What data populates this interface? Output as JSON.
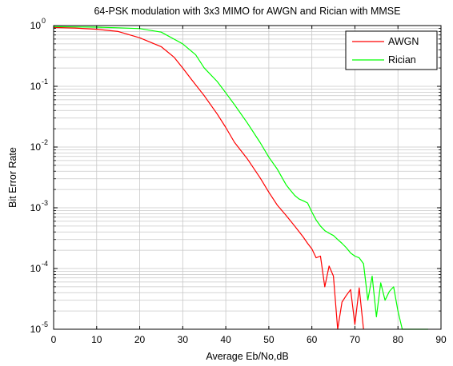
{
  "chart_data": {
    "type": "line",
    "title": "64-PSK modulation with 3x3 MIMO for AWGN and Rician with MMSE",
    "xlabel": "Average Eb/No,dB",
    "ylabel": "Bit Error Rate",
    "xlim": [
      0,
      90
    ],
    "ylim": [
      1e-05,
      1
    ],
    "yscale": "log",
    "grid": true,
    "legend_position": "top-right",
    "x_ticks": [
      {
        "value": 0,
        "label": "0"
      },
      {
        "value": 10,
        "label": "10"
      },
      {
        "value": 20,
        "label": "20"
      },
      {
        "value": 30,
        "label": "30"
      },
      {
        "value": 40,
        "label": "40"
      },
      {
        "value": 50,
        "label": "50"
      },
      {
        "value": 60,
        "label": "60"
      },
      {
        "value": 70,
        "label": "70"
      },
      {
        "value": 80,
        "label": "80"
      },
      {
        "value": 90,
        "label": "90"
      }
    ],
    "y_ticks": [
      {
        "exp": 0,
        "base": "10",
        "sup": "0"
      },
      {
        "exp": -1,
        "base": "10",
        "sup": "-1"
      },
      {
        "exp": -2,
        "base": "10",
        "sup": "-2"
      },
      {
        "exp": -3,
        "base": "10",
        "sup": "-3"
      },
      {
        "exp": -4,
        "base": "10",
        "sup": "-4"
      },
      {
        "exp": -5,
        "base": "10",
        "sup": "-5"
      }
    ],
    "series": [
      {
        "name": "AWGN",
        "color": "#ff0000",
        "points": [
          [
            0,
            0.93
          ],
          [
            5,
            0.91
          ],
          [
            10,
            0.87
          ],
          [
            15,
            0.8
          ],
          [
            20,
            0.63
          ],
          [
            25,
            0.45
          ],
          [
            28,
            0.3
          ],
          [
            30,
            0.2
          ],
          [
            32,
            0.13
          ],
          [
            35,
            0.07
          ],
          [
            38,
            0.035
          ],
          [
            40,
            0.021
          ],
          [
            42,
            0.012
          ],
          [
            45,
            0.0064
          ],
          [
            48,
            0.0031
          ],
          [
            50,
            0.0018
          ],
          [
            52,
            0.0011
          ],
          [
            54,
            0.00075
          ],
          [
            56,
            0.0005
          ],
          [
            58,
            0.00033
          ],
          [
            59,
            0.00026
          ],
          [
            60,
            0.00021
          ],
          [
            61,
            0.00015
          ],
          [
            62,
            0.00016
          ],
          [
            63,
            5e-05
          ],
          [
            64,
            0.00011
          ],
          [
            65,
            7.5e-05
          ],
          [
            66,
            1e-05
          ],
          [
            67,
            2.8e-05
          ],
          [
            68,
            3.6e-05
          ],
          [
            69,
            4.5e-05
          ],
          [
            70,
            1.2e-05
          ],
          [
            71,
            4.8e-05
          ],
          [
            72,
            1e-05
          ]
        ]
      },
      {
        "name": "Rician",
        "color": "#00ff00",
        "points": [
          [
            0,
            0.96
          ],
          [
            5,
            0.95
          ],
          [
            10,
            0.94
          ],
          [
            15,
            0.92
          ],
          [
            20,
            0.89
          ],
          [
            25,
            0.78
          ],
          [
            30,
            0.5
          ],
          [
            33,
            0.33
          ],
          [
            35,
            0.2
          ],
          [
            38,
            0.12
          ],
          [
            40,
            0.078
          ],
          [
            42,
            0.05
          ],
          [
            45,
            0.025
          ],
          [
            48,
            0.0118
          ],
          [
            50,
            0.0068
          ],
          [
            52,
            0.0043
          ],
          [
            54,
            0.0024
          ],
          [
            55,
            0.00195
          ],
          [
            56,
            0.0016
          ],
          [
            57,
            0.0014
          ],
          [
            58,
            0.0013
          ],
          [
            59,
            0.0012
          ],
          [
            60,
            0.00085
          ],
          [
            61,
            0.00063
          ],
          [
            62,
            0.0005
          ],
          [
            63,
            0.00042
          ],
          [
            64,
            0.00038
          ],
          [
            65,
            0.00035
          ],
          [
            66,
            0.0003
          ],
          [
            67,
            0.00026
          ],
          [
            68,
            0.00022
          ],
          [
            69,
            0.00018
          ],
          [
            70,
            0.00016
          ],
          [
            71,
            0.00015
          ],
          [
            72,
            0.00012
          ],
          [
            73,
            3e-05
          ],
          [
            74,
            7.5e-05
          ],
          [
            75,
            1.6e-05
          ],
          [
            76,
            5.8e-05
          ],
          [
            77,
            3e-05
          ],
          [
            78,
            4.2e-05
          ],
          [
            79,
            5e-05
          ],
          [
            80,
            2e-05
          ],
          [
            81,
            1e-05
          ],
          [
            86,
            1e-05
          ],
          [
            87,
            1e-05
          ]
        ]
      }
    ]
  }
}
